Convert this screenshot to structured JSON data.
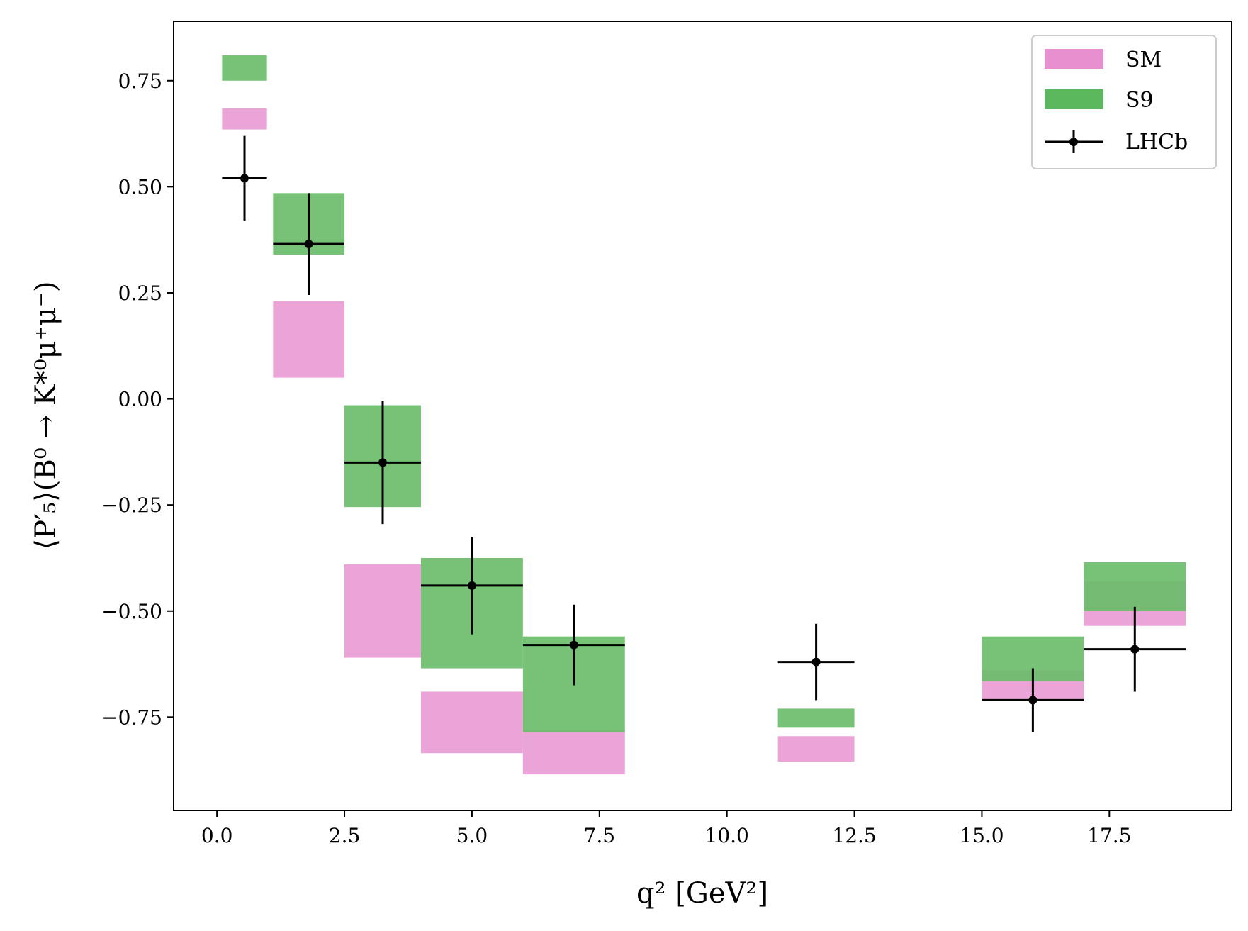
{
  "chart_data": {
    "type": "bar",
    "title": "",
    "xlabel": "q² [GeV²]",
    "ylabel": "⟨P′₅⟩(B⁰ → K*⁰μ⁺μ⁻)",
    "xlim": [
      -0.85,
      19.9
    ],
    "ylim": [
      -0.97,
      0.89
    ],
    "xticks": [
      0.0,
      2.5,
      5.0,
      7.5,
      10.0,
      12.5,
      15.0,
      17.5
    ],
    "xtick_labels": [
      "0.0",
      "2.5",
      "5.0",
      "7.5",
      "10.0",
      "12.5",
      "15.0",
      "17.5"
    ],
    "yticks": [
      0.75,
      0.5,
      0.25,
      0.0,
      -0.25,
      -0.5,
      -0.75
    ],
    "ytick_labels": [
      "0.75",
      "0.50",
      "0.25",
      "0.00",
      "−0.25",
      "−0.50",
      "−0.75"
    ],
    "grid": false,
    "legend": {
      "position": "top-right",
      "entries": [
        {
          "label": "SM",
          "kind": "band",
          "color": "#e88fcf"
        },
        {
          "label": "S9",
          "kind": "band",
          "color": "#5cb85c"
        },
        {
          "label": "LHCb",
          "kind": "errorbar",
          "color": "#000000"
        }
      ]
    },
    "colors": {
      "SM": "#e99fd5",
      "S9": "#6bbd6b",
      "LHCb": "#000000"
    },
    "series": [
      {
        "name": "SM",
        "kind": "band",
        "bins": [
          {
            "x0": 0.1,
            "x1": 0.98,
            "low": 0.635,
            "high": 0.685
          },
          {
            "x0": 1.1,
            "x1": 2.5,
            "low": 0.05,
            "high": 0.23
          },
          {
            "x0": 2.5,
            "x1": 4.0,
            "low": -0.61,
            "high": -0.39
          },
          {
            "x0": 4.0,
            "x1": 6.0,
            "low": -0.835,
            "high": -0.69
          },
          {
            "x0": 6.0,
            "x1": 8.0,
            "low": -0.885,
            "high": -0.78
          },
          {
            "x0": 11.0,
            "x1": 12.5,
            "low": -0.855,
            "high": -0.795
          },
          {
            "x0": 15.0,
            "x1": 17.0,
            "low": -0.71,
            "high": -0.64
          },
          {
            "x0": 17.0,
            "x1": 19.0,
            "low": -0.535,
            "high": -0.43
          }
        ]
      },
      {
        "name": "S9",
        "kind": "band",
        "bins": [
          {
            "x0": 0.1,
            "x1": 0.98,
            "low": 0.75,
            "high": 0.81
          },
          {
            "x0": 1.1,
            "x1": 2.5,
            "low": 0.34,
            "high": 0.485
          },
          {
            "x0": 2.5,
            "x1": 4.0,
            "low": -0.255,
            "high": -0.015
          },
          {
            "x0": 4.0,
            "x1": 6.0,
            "low": -0.635,
            "high": -0.375
          },
          {
            "x0": 6.0,
            "x1": 8.0,
            "low": -0.785,
            "high": -0.56
          },
          {
            "x0": 11.0,
            "x1": 12.5,
            "low": -0.775,
            "high": -0.73
          },
          {
            "x0": 15.0,
            "x1": 17.0,
            "low": -0.665,
            "high": -0.56
          },
          {
            "x0": 17.0,
            "x1": 19.0,
            "low": -0.5,
            "high": -0.385
          }
        ]
      },
      {
        "name": "LHCb",
        "kind": "errorbar",
        "points": [
          {
            "x": 0.54,
            "xerr_low": 0.44,
            "xerr_high": 0.44,
            "y": 0.52,
            "yerr_low": 0.1,
            "yerr_high": 0.1
          },
          {
            "x": 1.8,
            "xerr_low": 0.7,
            "xerr_high": 0.7,
            "y": 0.365,
            "yerr_low": 0.12,
            "yerr_high": 0.12
          },
          {
            "x": 3.25,
            "xerr_low": 0.75,
            "xerr_high": 0.75,
            "y": -0.15,
            "yerr_low": 0.145,
            "yerr_high": 0.145
          },
          {
            "x": 5.0,
            "xerr_low": 1.0,
            "xerr_high": 1.0,
            "y": -0.44,
            "yerr_low": 0.115,
            "yerr_high": 0.115
          },
          {
            "x": 7.0,
            "xerr_low": 1.0,
            "xerr_high": 1.0,
            "y": -0.58,
            "yerr_low": 0.095,
            "yerr_high": 0.095
          },
          {
            "x": 11.75,
            "xerr_low": 0.75,
            "xerr_high": 0.75,
            "y": -0.62,
            "yerr_low": 0.09,
            "yerr_high": 0.09
          },
          {
            "x": 16.0,
            "xerr_low": 1.0,
            "xerr_high": 1.0,
            "y": -0.71,
            "yerr_low": 0.075,
            "yerr_high": 0.075
          },
          {
            "x": 18.0,
            "xerr_low": 1.0,
            "xerr_high": 1.0,
            "y": -0.59,
            "yerr_low": 0.1,
            "yerr_high": 0.1
          }
        ]
      }
    ]
  }
}
